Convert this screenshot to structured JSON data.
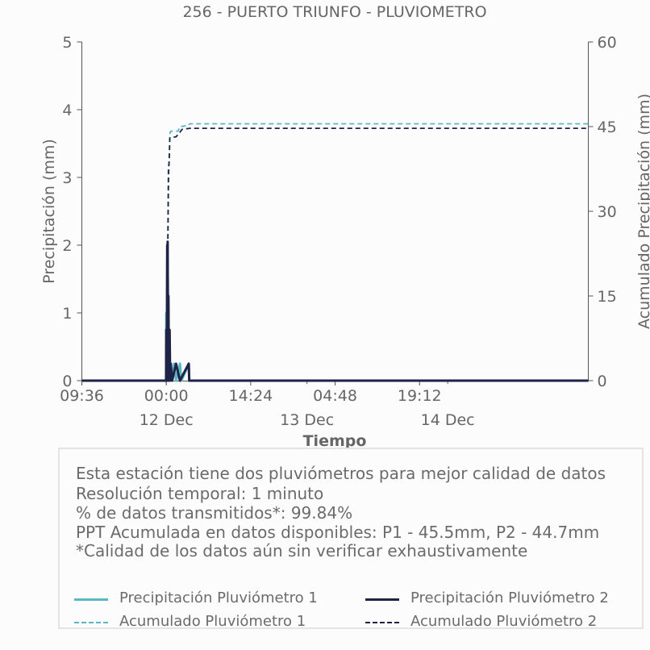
{
  "chart_data": {
    "type": "line",
    "title": "256 - PUERTO TRIUNFO - PLUVIOMETRO",
    "xlabel": "Tiempo",
    "ylabel": "Precipitación (mm)",
    "y2label": "Acumulado Precipitación (mm)",
    "ylim": [
      0,
      5
    ],
    "y2lim": [
      0,
      60
    ],
    "yticks": [
      "0",
      "1",
      "2",
      "3",
      "4",
      "5"
    ],
    "y2ticks": [
      "0",
      "15",
      "30",
      "45",
      "60"
    ],
    "xlim": [
      "2024-12-11 09:36",
      "2024-12-14 23:59"
    ],
    "xticks": [
      {
        "t": "2024-12-11 09:36",
        "label": "09:36"
      },
      {
        "t": "2024-12-12 00:00",
        "label": "00:00"
      },
      {
        "t": "2024-12-12 14:24",
        "label": "14:24"
      },
      {
        "t": "2024-12-13 04:48",
        "label": "04:48"
      },
      {
        "t": "2024-12-13 19:12",
        "label": "19:12"
      }
    ],
    "xticks_minor": [
      {
        "t": "2024-12-12 00:00",
        "label": "12 Dec"
      },
      {
        "t": "2024-12-13 00:00",
        "label": "13 Dec"
      },
      {
        "t": "2024-12-14 00:00",
        "label": "14 Dec"
      }
    ],
    "grid": false,
    "series": [
      {
        "name": "Precipitación Pluviómetro 1",
        "axis": "left",
        "color": "#5ab8c4",
        "style": "solid",
        "points": [
          [
            "2024-12-11 09:36",
            0
          ],
          [
            "2024-12-11 23:59",
            0
          ],
          [
            "2024-12-12 00:00",
            1.0
          ],
          [
            "2024-12-12 00:05",
            0
          ],
          [
            "2024-12-12 00:10",
            2.0
          ],
          [
            "2024-12-12 00:14",
            0
          ],
          [
            "2024-12-12 00:16",
            1.5
          ],
          [
            "2024-12-12 00:20",
            0
          ],
          [
            "2024-12-12 00:22",
            1.1
          ],
          [
            "2024-12-12 00:26",
            0
          ],
          [
            "2024-12-12 00:32",
            0.7
          ],
          [
            "2024-12-12 00:38",
            0
          ],
          [
            "2024-12-12 00:46",
            0.25
          ],
          [
            "2024-12-12 01:00",
            0
          ],
          [
            "2024-12-12 01:20",
            0.25
          ],
          [
            "2024-12-12 01:40",
            0
          ],
          [
            "2024-12-12 02:20",
            0.25
          ],
          [
            "2024-12-12 02:35",
            0
          ],
          [
            "2024-12-12 03:50",
            0.25
          ],
          [
            "2024-12-12 03:55",
            0
          ],
          [
            "2024-12-14 23:59",
            0
          ]
        ]
      },
      {
        "name": "Precipitación Pluviómetro 2",
        "axis": "left",
        "color": "#1f2348",
        "style": "solid",
        "points": [
          [
            "2024-12-11 09:36",
            0
          ],
          [
            "2024-12-11 23:58",
            0
          ],
          [
            "2024-12-12 00:00",
            0.75
          ],
          [
            "2024-12-12 00:05",
            0
          ],
          [
            "2024-12-12 00:10",
            2.0
          ],
          [
            "2024-12-12 00:12",
            0.4
          ],
          [
            "2024-12-12 00:14",
            2.05
          ],
          [
            "2024-12-12 00:18",
            0
          ],
          [
            "2024-12-12 00:22",
            1.25
          ],
          [
            "2024-12-12 00:27",
            0
          ],
          [
            "2024-12-12 00:34",
            0.75
          ],
          [
            "2024-12-12 00:40",
            0
          ],
          [
            "2024-12-12 00:46",
            0.25
          ],
          [
            "2024-12-12 01:00",
            0
          ],
          [
            "2024-12-12 01:40",
            0.25
          ],
          [
            "2024-12-12 02:20",
            0
          ],
          [
            "2024-12-12 03:50",
            0.25
          ],
          [
            "2024-12-12 03:55",
            0
          ],
          [
            "2024-12-14 23:59",
            0
          ]
        ]
      },
      {
        "name": "Acumulado Pluviómetro 1",
        "axis": "right",
        "color": "#5ab8c4",
        "style": "dashed",
        "points": [
          [
            "2024-12-11 09:36",
            0
          ],
          [
            "2024-12-11 23:55",
            0
          ],
          [
            "2024-12-12 00:00",
            2
          ],
          [
            "2024-12-12 00:10",
            12
          ],
          [
            "2024-12-12 00:16",
            25
          ],
          [
            "2024-12-12 00:22",
            33
          ],
          [
            "2024-12-12 00:30",
            40
          ],
          [
            "2024-12-12 00:40",
            44
          ],
          [
            "2024-12-12 00:50",
            44.2
          ],
          [
            "2024-12-12 02:00",
            44.2
          ],
          [
            "2024-12-12 02:20",
            45
          ],
          [
            "2024-12-12 03:50",
            45.2
          ],
          [
            "2024-12-12 04:00",
            45.5
          ],
          [
            "2024-12-14 23:59",
            45.5
          ]
        ]
      },
      {
        "name": "Acumulado Pluviómetro 2",
        "axis": "right",
        "color": "#1f2348",
        "style": "dashed",
        "points": [
          [
            "2024-12-11 09:36",
            0
          ],
          [
            "2024-12-11 23:55",
            0
          ],
          [
            "2024-12-12 00:00",
            2
          ],
          [
            "2024-12-12 00:10",
            10
          ],
          [
            "2024-12-12 00:16",
            24
          ],
          [
            "2024-12-12 00:22",
            37.5
          ],
          [
            "2024-12-12 00:28",
            38.5
          ],
          [
            "2024-12-12 00:32",
            40
          ],
          [
            "2024-12-12 00:36",
            43
          ],
          [
            "2024-12-12 01:40",
            43.2
          ],
          [
            "2024-12-12 02:20",
            44
          ],
          [
            "2024-12-12 02:40",
            44.5
          ],
          [
            "2024-12-12 04:00",
            44.7
          ],
          [
            "2024-12-14 23:59",
            44.7
          ]
        ]
      }
    ]
  },
  "info": {
    "line1": "Esta estación tiene dos pluviómetros para mejor calidad de datos",
    "line2": "Resolución temporal: 1 minuto",
    "line3": "% de datos transmitidos*: 99.84%",
    "line4": "PPT Acumulada en datos disponibles: P1 - 45.5mm, P2 - 44.7mm",
    "line5": "*Calidad de los datos aún sin verificar exhaustivamente"
  },
  "legend": [
    {
      "label": "Precipitación Pluviómetro 1",
      "color": "#5ab8c4",
      "style": "solid"
    },
    {
      "label": "Precipitación Pluviómetro 2",
      "color": "#1f2348",
      "style": "solid"
    },
    {
      "label": "Acumulado Pluviómetro 1",
      "color": "#5ab8c4",
      "style": "dashed"
    },
    {
      "label": "Acumulado Pluviómetro 2",
      "color": "#1f2348",
      "style": "dashed"
    }
  ]
}
